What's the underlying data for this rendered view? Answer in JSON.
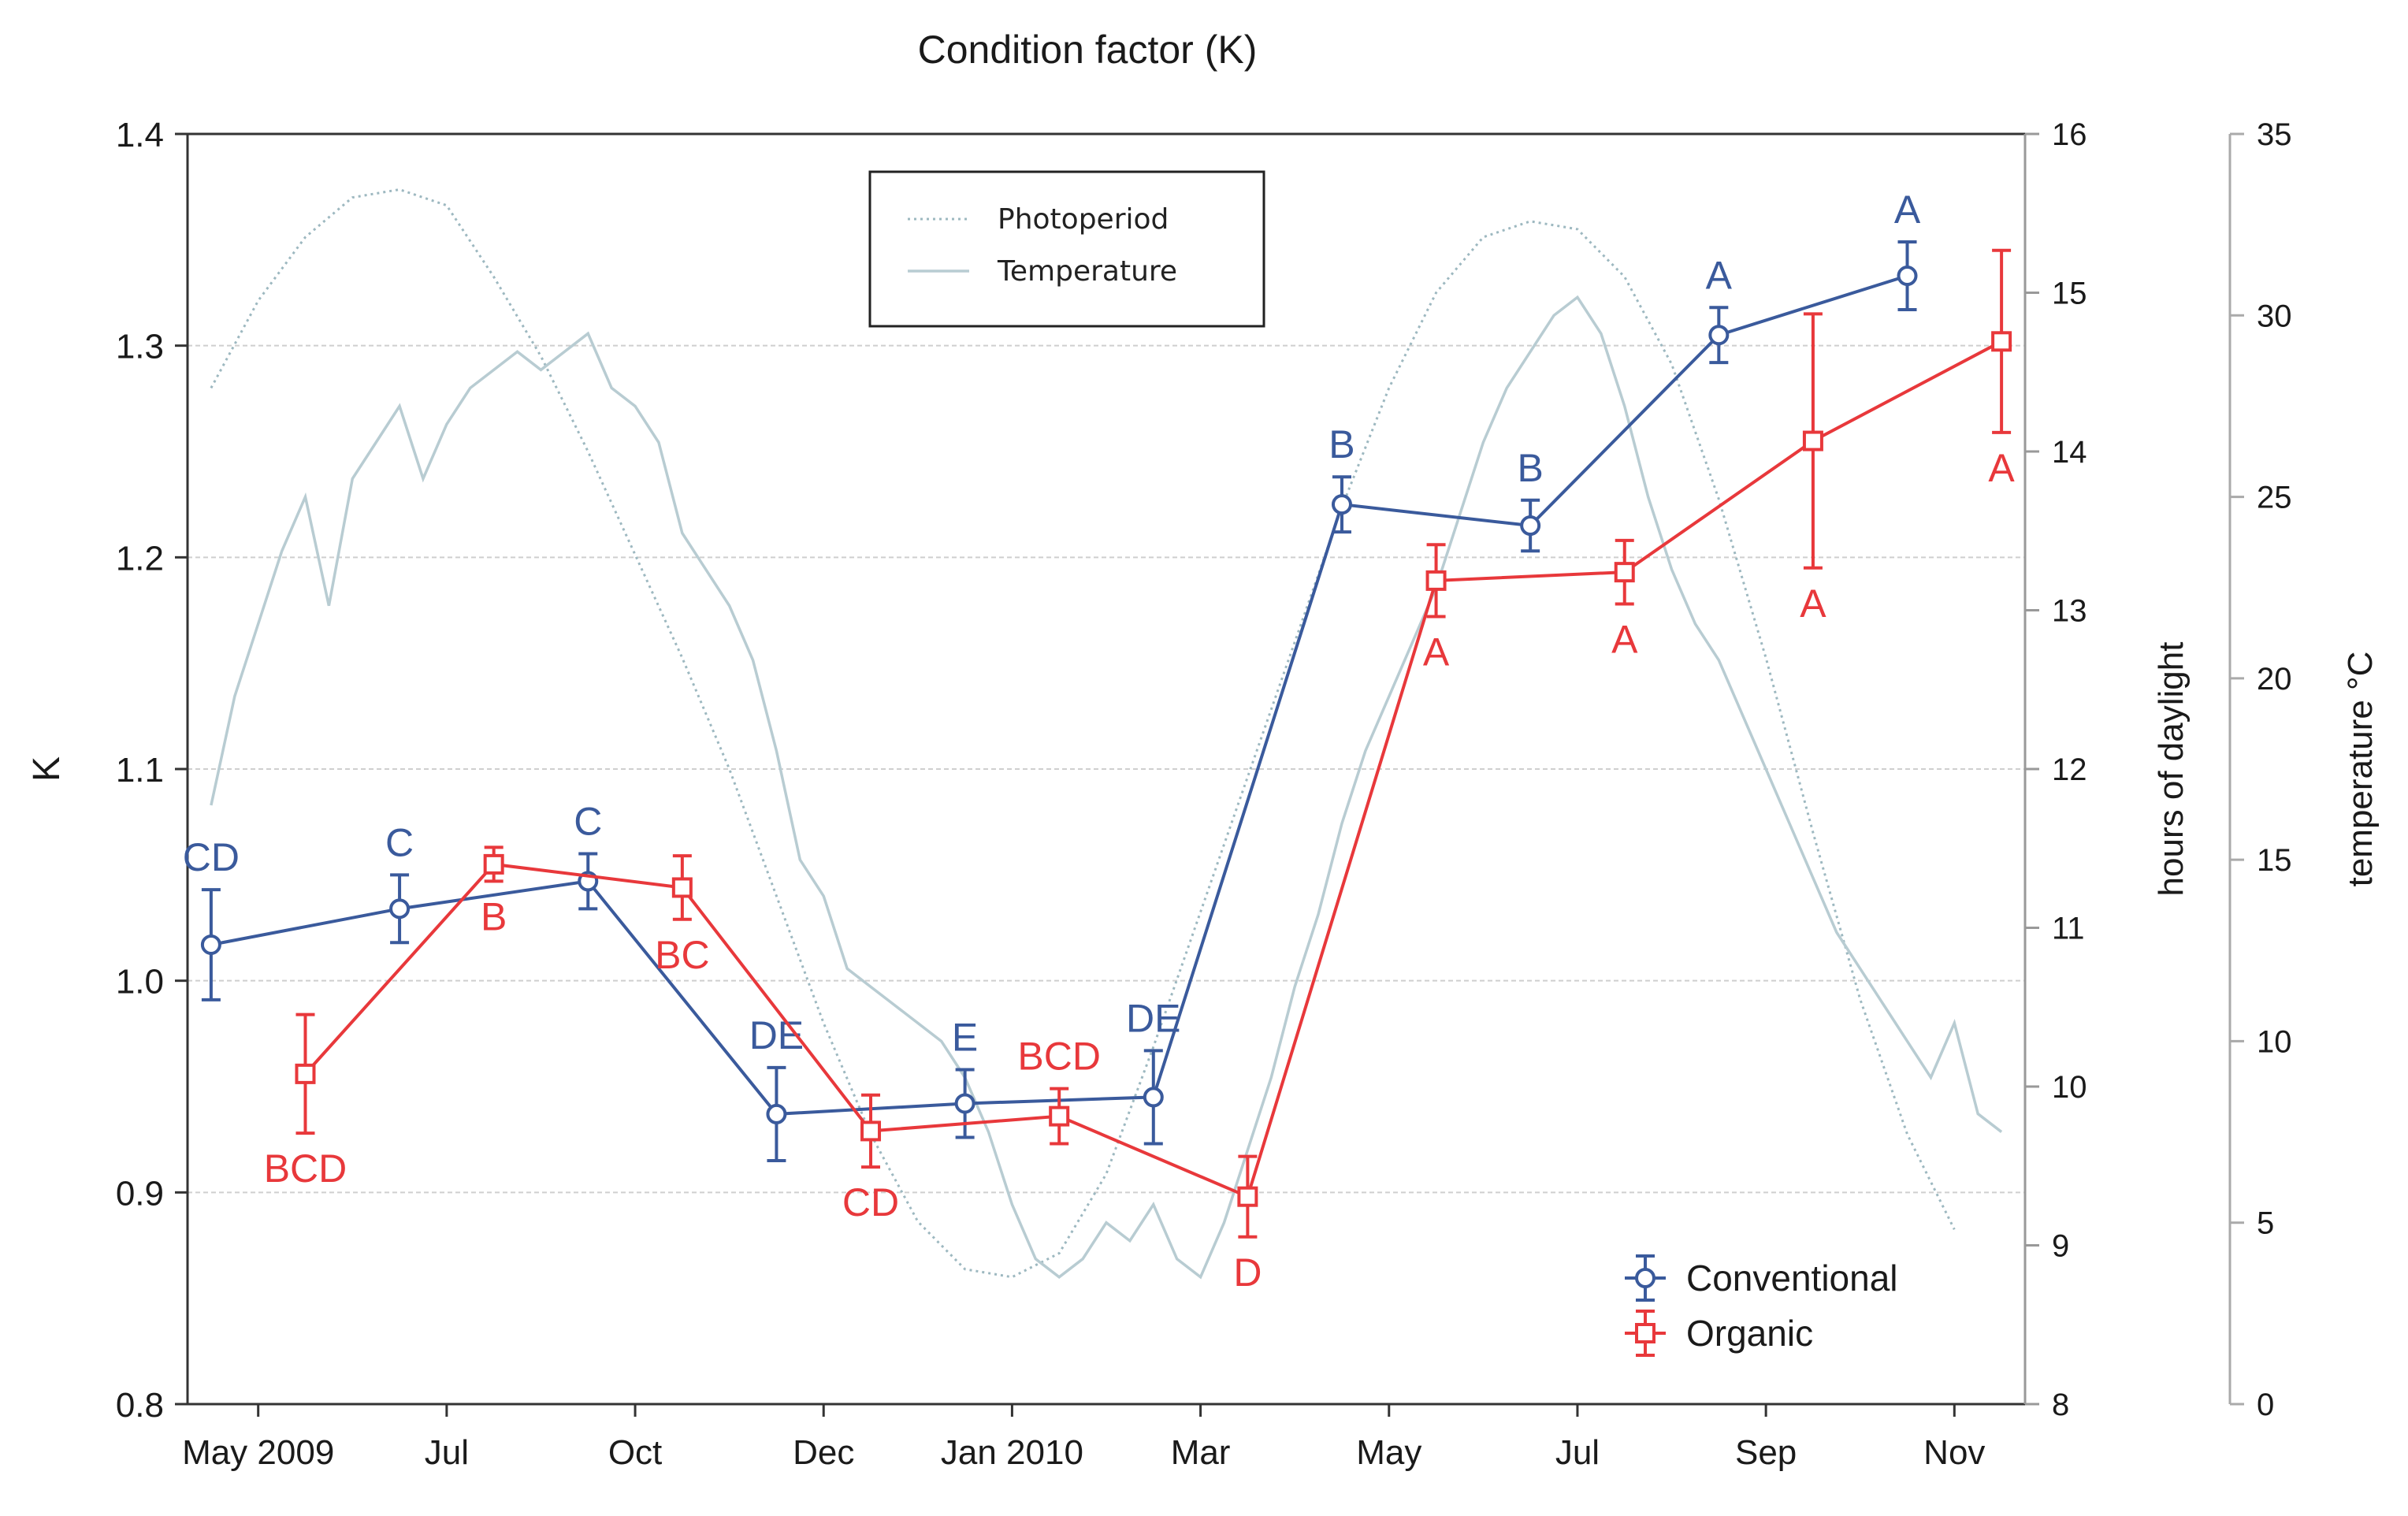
{
  "chart_data": {
    "type": "line",
    "title": "Condition factor (K)",
    "ylabel": "K",
    "ylabel_right": "hours of daylight",
    "ylabel_right2": "temperature °C",
    "ylim": [
      0.8,
      1.4
    ],
    "yticks": [
      "1.4",
      "1.3",
      "1.2",
      "1.1",
      "1.0",
      "0.9",
      "0.8"
    ],
    "ytick_values": [
      1.4,
      1.3,
      1.2,
      1.1,
      1.0,
      0.9,
      0.8
    ],
    "y2lim": [
      8,
      16
    ],
    "y2ticks": [
      "16",
      "15",
      "14",
      "13",
      "12",
      "11",
      "10",
      "9",
      "8"
    ],
    "y2tick_values": [
      16,
      15,
      14,
      13,
      12,
      11,
      10,
      9,
      8
    ],
    "y3lim": [
      0,
      35
    ],
    "y3ticks": [
      "35",
      "30",
      "25",
      "20",
      "15",
      "10",
      "5",
      "0"
    ],
    "y3tick_values": [
      35,
      30,
      25,
      20,
      15,
      10,
      5,
      0
    ],
    "xlim": [
      4.25,
      23.75
    ],
    "x_tick_positions": [
      5,
      7,
      9,
      11,
      13,
      15,
      17,
      19,
      21,
      23
    ],
    "x_tick_labels": [
      "May 2009",
      "Jul",
      "Oct",
      "Dec",
      "Jan 2010",
      "Mar",
      "May",
      "Jul",
      "Sep",
      "Nov"
    ],
    "series": [
      {
        "name": "Conventional",
        "color": "#3a5a9c",
        "marker": "circle",
        "x": [
          4.5,
          6.5,
          8.5,
          10.5,
          12.5,
          14.5,
          16.5,
          18.5,
          20.5,
          22.5
        ],
        "values": [
          1.017,
          1.034,
          1.047,
          0.937,
          0.942,
          0.945,
          1.225,
          1.215,
          1.305,
          1.333
        ],
        "errors": [
          0.026,
          0.016,
          0.013,
          0.022,
          0.016,
          0.022,
          0.013,
          0.012,
          0.013,
          0.016
        ],
        "letters": [
          "CD",
          "C",
          "C",
          "DE",
          "E",
          "DE",
          "B",
          "B",
          "A",
          "A"
        ],
        "letter_placement": [
          "above",
          "above",
          "above",
          "above",
          "above",
          "above",
          "above",
          "above",
          "above",
          "above"
        ]
      },
      {
        "name": "Organic",
        "color": "#e8383b",
        "marker": "square",
        "x": [
          5.5,
          7.5,
          9.5,
          11.5,
          13.5,
          15.5,
          17.5,
          19.5,
          21.5,
          23.5
        ],
        "values": [
          0.956,
          1.055,
          1.044,
          0.929,
          0.936,
          0.898,
          1.189,
          1.193,
          1.255,
          1.302
        ],
        "errors": [
          0.028,
          0.008,
          0.015,
          0.017,
          0.013,
          0.019,
          0.017,
          0.015,
          0.06,
          0.043
        ],
        "letters": [
          "BCD",
          "B",
          "BC",
          "CD",
          "BCD",
          "D",
          "A",
          "A",
          "A",
          "A"
        ],
        "letter_placement": [
          "below",
          "below",
          "below",
          "below",
          "above",
          "below",
          "below",
          "below",
          "below",
          "below"
        ]
      },
      {
        "name": "Photoperiod",
        "axis": "hours of daylight",
        "color": "#9db8c0",
        "style": "dotted",
        "x": [
          4.5,
          5.0,
          5.5,
          6.0,
          6.5,
          7.0,
          7.5,
          8.0,
          8.5,
          9.0,
          9.5,
          10.0,
          10.5,
          11.0,
          11.5,
          12.0,
          12.5,
          13.0,
          13.5,
          14.0,
          14.5,
          15.0,
          15.5,
          16.0,
          16.5,
          17.0,
          17.5,
          18.0,
          18.5,
          19.0,
          19.5,
          20.0,
          20.5,
          21.0,
          21.5,
          22.0,
          22.5,
          23.0
        ],
        "values": [
          14.4,
          14.95,
          15.35,
          15.6,
          15.65,
          15.55,
          15.1,
          14.6,
          14.0,
          13.35,
          12.7,
          12.0,
          11.2,
          10.4,
          9.7,
          9.15,
          8.85,
          8.8,
          8.95,
          9.45,
          10.25,
          11.1,
          11.95,
          12.8,
          13.65,
          14.4,
          15.0,
          15.35,
          15.45,
          15.4,
          15.1,
          14.55,
          13.7,
          12.7,
          11.6,
          10.55,
          9.7,
          9.1
        ]
      },
      {
        "name": "Temperature",
        "axis": "temperature °C",
        "color": "#b8ccd2",
        "style": "solid",
        "x": [
          4.5,
          4.75,
          5.0,
          5.25,
          5.5,
          5.75,
          6.0,
          6.25,
          6.5,
          6.75,
          7.0,
          7.25,
          7.5,
          7.75,
          8.0,
          8.25,
          8.5,
          8.75,
          9.0,
          9.25,
          9.5,
          9.75,
          10.0,
          10.25,
          10.5,
          10.75,
          11.0,
          11.25,
          11.5,
          11.75,
          12.0,
          12.25,
          12.5,
          12.75,
          13.0,
          13.25,
          13.5,
          13.75,
          14.0,
          14.25,
          14.5,
          14.75,
          15.0,
          15.25,
          15.5,
          15.75,
          16.0,
          16.25,
          16.5,
          16.75,
          17.0,
          17.25,
          17.5,
          17.75,
          18.0,
          18.25,
          18.5,
          18.75,
          19.0,
          19.25,
          19.5,
          19.75,
          20.0,
          20.25,
          20.5,
          20.75,
          21.0,
          21.25,
          21.5,
          21.75,
          22.0,
          22.25,
          22.5,
          22.75,
          23.0,
          23.25,
          23.5
        ],
        "values": [
          16.5,
          19.5,
          21.5,
          23.5,
          25.0,
          22.0,
          25.5,
          26.5,
          27.5,
          25.5,
          27.0,
          28.0,
          28.5,
          29.0,
          28.5,
          29.0,
          29.5,
          28.0,
          27.5,
          26.5,
          24.0,
          23.0,
          22.0,
          20.5,
          18.0,
          15.0,
          14.0,
          12.0,
          11.5,
          11.0,
          10.5,
          10.0,
          9.0,
          7.5,
          5.5,
          4.0,
          3.5,
          4.0,
          5.0,
          4.5,
          5.5,
          4.0,
          3.5,
          5.0,
          7.0,
          9.0,
          11.5,
          13.5,
          16.0,
          18.0,
          19.5,
          21.0,
          22.5,
          24.5,
          26.5,
          28.0,
          29.0,
          30.0,
          30.5,
          29.5,
          27.5,
          25.0,
          23.0,
          21.5,
          20.5,
          19.0,
          17.5,
          16.0,
          14.5,
          13.0,
          12.0,
          11.0,
          10.0,
          9.0,
          10.5,
          8.0,
          7.5
        ]
      }
    ],
    "legend_top": [
      {
        "label": "Photoperiod",
        "style": "dotted"
      },
      {
        "label": "Temperature",
        "style": "solid"
      }
    ],
    "legend_bottom": [
      {
        "label": "Conventional",
        "marker": "circle"
      },
      {
        "label": "Organic",
        "marker": "square"
      }
    ]
  }
}
